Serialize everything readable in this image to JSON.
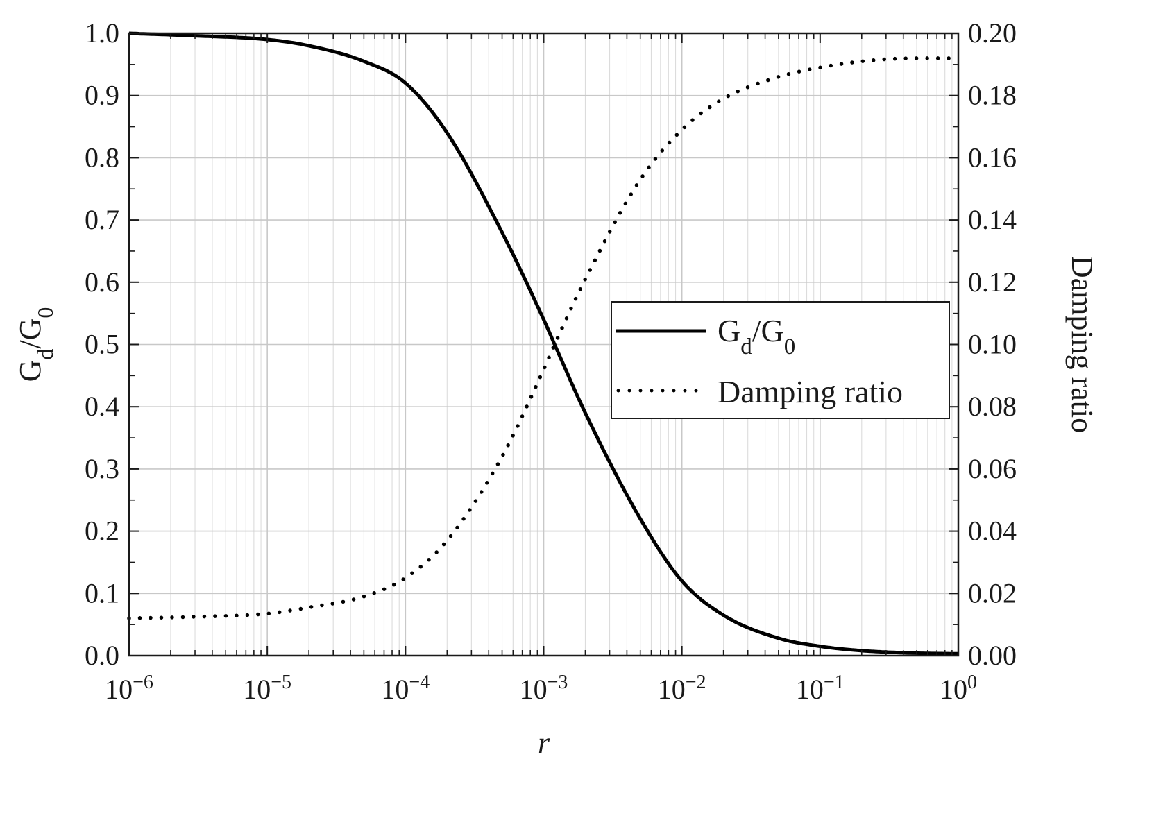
{
  "chart_data": {
    "type": "line",
    "xscale": "log",
    "xlim": [
      1e-06,
      1
    ],
    "x_ticks": [
      1e-06,
      1e-05,
      0.0001,
      0.001,
      0.01,
      0.1,
      1
    ],
    "x_tick_labels": [
      {
        "base": "10",
        "exp": "−6"
      },
      {
        "base": "10",
        "exp": "−5"
      },
      {
        "base": "10",
        "exp": "−4"
      },
      {
        "base": "10",
        "exp": "−3"
      },
      {
        "base": "10",
        "exp": "−2"
      },
      {
        "base": "10",
        "exp": "−1"
      },
      {
        "base": "10",
        "exp": "0"
      }
    ],
    "xlabel": "r",
    "ylabel_left": {
      "main": "G",
      "sub1": "d",
      "mid": "/G",
      "sub2": "0"
    },
    "ylabel_right": "Damping ratio",
    "ylim_left": [
      0,
      1
    ],
    "ylim_right": [
      0,
      0.2
    ],
    "y_ticks_left": [
      "0.0",
      "0.1",
      "0.2",
      "0.3",
      "0.4",
      "0.5",
      "0.6",
      "0.7",
      "0.8",
      "0.9",
      "1.0"
    ],
    "y_ticks_right": [
      "0.00",
      "0.02",
      "0.04",
      "0.06",
      "0.08",
      "0.10",
      "0.12",
      "0.14",
      "0.16",
      "0.18",
      "0.20"
    ],
    "grid": true,
    "legend_position": "center-right",
    "series": [
      {
        "id": "gd_g0",
        "axis": "left",
        "style": "solid",
        "color": "#000000",
        "legend": {
          "main": "G",
          "sub1": "d",
          "mid": "/G",
          "sub2": "0"
        },
        "x": [
          1e-06,
          3e-06,
          1e-05,
          2e-05,
          5e-05,
          0.0001,
          0.0002,
          0.0005,
          0.001,
          0.0012,
          0.002,
          0.005,
          0.01,
          0.02,
          0.05,
          0.1,
          0.2,
          0.5,
          1
        ],
        "y": [
          1.0,
          0.996,
          0.99,
          0.98,
          0.955,
          0.92,
          0.84,
          0.68,
          0.54,
          0.5,
          0.39,
          0.22,
          0.12,
          0.065,
          0.028,
          0.015,
          0.008,
          0.004,
          0.003
        ]
      },
      {
        "id": "damping",
        "axis": "right",
        "style": "dotted",
        "color": "#000000",
        "legend": "Damping ratio",
        "x": [
          1e-06,
          3e-06,
          1e-05,
          2e-05,
          5e-05,
          0.0001,
          0.0002,
          0.0005,
          0.001,
          0.0012,
          0.002,
          0.005,
          0.01,
          0.02,
          0.05,
          0.1,
          0.2,
          0.5,
          1
        ],
        "y": [
          0.012,
          0.0125,
          0.0135,
          0.0155,
          0.019,
          0.025,
          0.037,
          0.064,
          0.092,
          0.1,
          0.121,
          0.153,
          0.169,
          0.179,
          0.186,
          0.189,
          0.191,
          0.192,
          0.192
        ]
      }
    ]
  }
}
